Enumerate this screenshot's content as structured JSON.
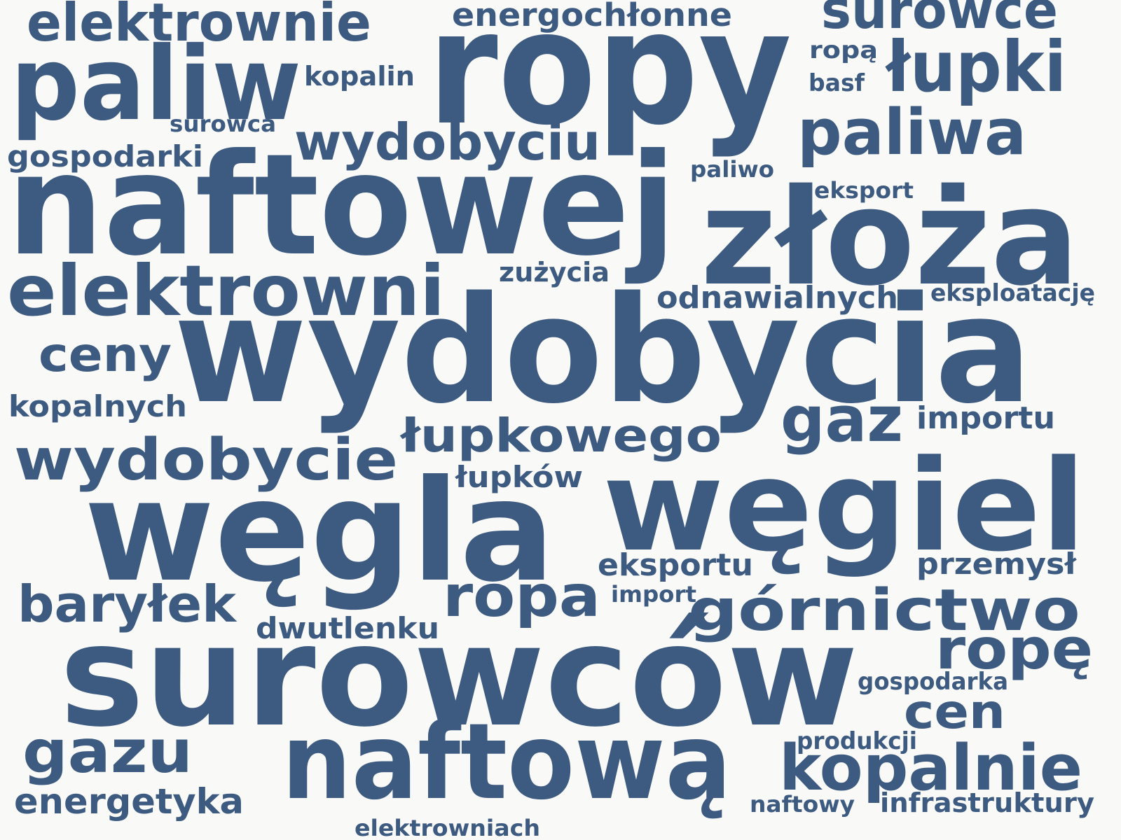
{
  "colors": {
    "background": "#f9f9f7",
    "word": "#3d5a80"
  },
  "words": [
    "ropy",
    "naftowej",
    "wydobycia",
    "złoża",
    "surowców",
    "węgla",
    "węgiel",
    "paliw",
    "naftową",
    "elektrowni",
    "elektrownie",
    "surowce",
    "łupki",
    "paliwa",
    "wydobyciu",
    "wydobycie",
    "kopalnie",
    "górnictwo",
    "ropa",
    "gaz",
    "gazu",
    "ropę",
    "baryłek",
    "łupkowego",
    "ceny",
    "cen",
    "energetyka",
    "energochłonne",
    "kopalin",
    "gospodarki",
    "kopalnych",
    "odnawialnych",
    "importu",
    "przemysł",
    "eksportu",
    "dwutlenku",
    "łupków",
    "zużycia",
    "gospodarka",
    "infrastruktury",
    "eksploatację",
    "ropą",
    "basf",
    "surowca",
    "paliwo",
    "eksport",
    "import",
    "produkcji",
    "naftowy",
    "elektrowniach"
  ]
}
